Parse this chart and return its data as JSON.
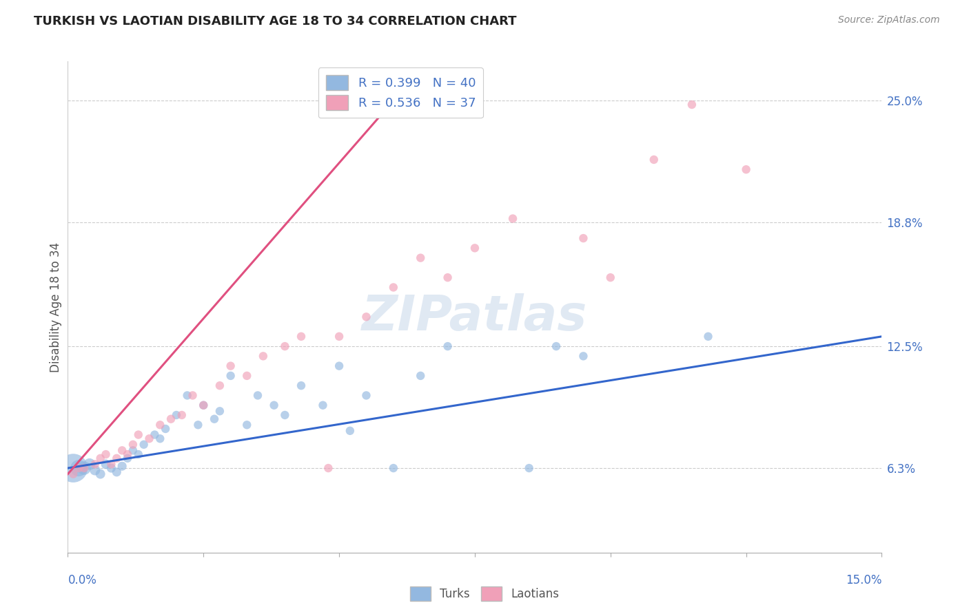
{
  "title": "TURKISH VS LAOTIAN DISABILITY AGE 18 TO 34 CORRELATION CHART",
  "source": "Source: ZipAtlas.com",
  "ylabel": "Disability Age 18 to 34",
  "ytick_labels": [
    "6.3%",
    "12.5%",
    "18.8%",
    "25.0%"
  ],
  "ytick_values": [
    0.063,
    0.125,
    0.188,
    0.25
  ],
  "xlim": [
    0.0,
    0.15
  ],
  "ylim": [
    0.02,
    0.27
  ],
  "legend_r_blue": "R = 0.399",
  "legend_n_blue": "N = 40",
  "legend_r_pink": "R = 0.536",
  "legend_n_pink": "N = 37",
  "legend_label_blue": "Turks",
  "legend_label_pink": "Laotians",
  "color_blue": "#93b8e0",
  "color_pink": "#f0a0b8",
  "line_color_blue": "#3366cc",
  "line_color_pink": "#e05080",
  "watermark_text": "ZIPatlas",
  "turks_x": [
    0.001,
    0.002,
    0.003,
    0.004,
    0.005,
    0.006,
    0.007,
    0.008,
    0.009,
    0.01,
    0.011,
    0.012,
    0.013,
    0.014,
    0.016,
    0.017,
    0.018,
    0.02,
    0.022,
    0.024,
    0.025,
    0.027,
    0.028,
    0.03,
    0.033,
    0.035,
    0.038,
    0.04,
    0.043,
    0.047,
    0.05,
    0.052,
    0.055,
    0.06,
    0.065,
    0.07,
    0.085,
    0.09,
    0.095,
    0.118
  ],
  "turks_y": [
    0.063,
    0.063,
    0.063,
    0.065,
    0.062,
    0.06,
    0.065,
    0.063,
    0.061,
    0.064,
    0.068,
    0.072,
    0.07,
    0.075,
    0.08,
    0.078,
    0.083,
    0.09,
    0.1,
    0.085,
    0.095,
    0.088,
    0.092,
    0.11,
    0.085,
    0.1,
    0.095,
    0.09,
    0.105,
    0.095,
    0.115,
    0.082,
    0.1,
    0.063,
    0.11,
    0.125,
    0.063,
    0.125,
    0.12,
    0.13
  ],
  "turks_size": [
    900,
    300,
    200,
    150,
    120,
    100,
    100,
    90,
    90,
    90,
    80,
    80,
    80,
    80,
    80,
    80,
    80,
    80,
    80,
    80,
    80,
    80,
    80,
    80,
    80,
    80,
    80,
    80,
    80,
    80,
    80,
    80,
    80,
    80,
    80,
    80,
    80,
    80,
    80,
    80
  ],
  "laotians_x": [
    0.001,
    0.002,
    0.003,
    0.005,
    0.006,
    0.007,
    0.008,
    0.009,
    0.01,
    0.011,
    0.012,
    0.013,
    0.015,
    0.017,
    0.019,
    0.021,
    0.023,
    0.025,
    0.028,
    0.03,
    0.033,
    0.036,
    0.04,
    0.043,
    0.048,
    0.05,
    0.055,
    0.06,
    0.065,
    0.07,
    0.075,
    0.082,
    0.095,
    0.1,
    0.108,
    0.115,
    0.125
  ],
  "laotians_y": [
    0.06,
    0.063,
    0.063,
    0.065,
    0.068,
    0.07,
    0.065,
    0.068,
    0.072,
    0.07,
    0.075,
    0.08,
    0.078,
    0.085,
    0.088,
    0.09,
    0.1,
    0.095,
    0.105,
    0.115,
    0.11,
    0.12,
    0.125,
    0.13,
    0.063,
    0.13,
    0.14,
    0.155,
    0.17,
    0.16,
    0.175,
    0.19,
    0.18,
    0.16,
    0.22,
    0.248,
    0.215
  ],
  "laotians_size": [
    80,
    80,
    80,
    80,
    80,
    80,
    80,
    80,
    80,
    80,
    80,
    80,
    80,
    80,
    80,
    80,
    80,
    80,
    80,
    80,
    80,
    80,
    80,
    80,
    80,
    80,
    80,
    80,
    80,
    80,
    80,
    80,
    80,
    80,
    80,
    80,
    80
  ]
}
